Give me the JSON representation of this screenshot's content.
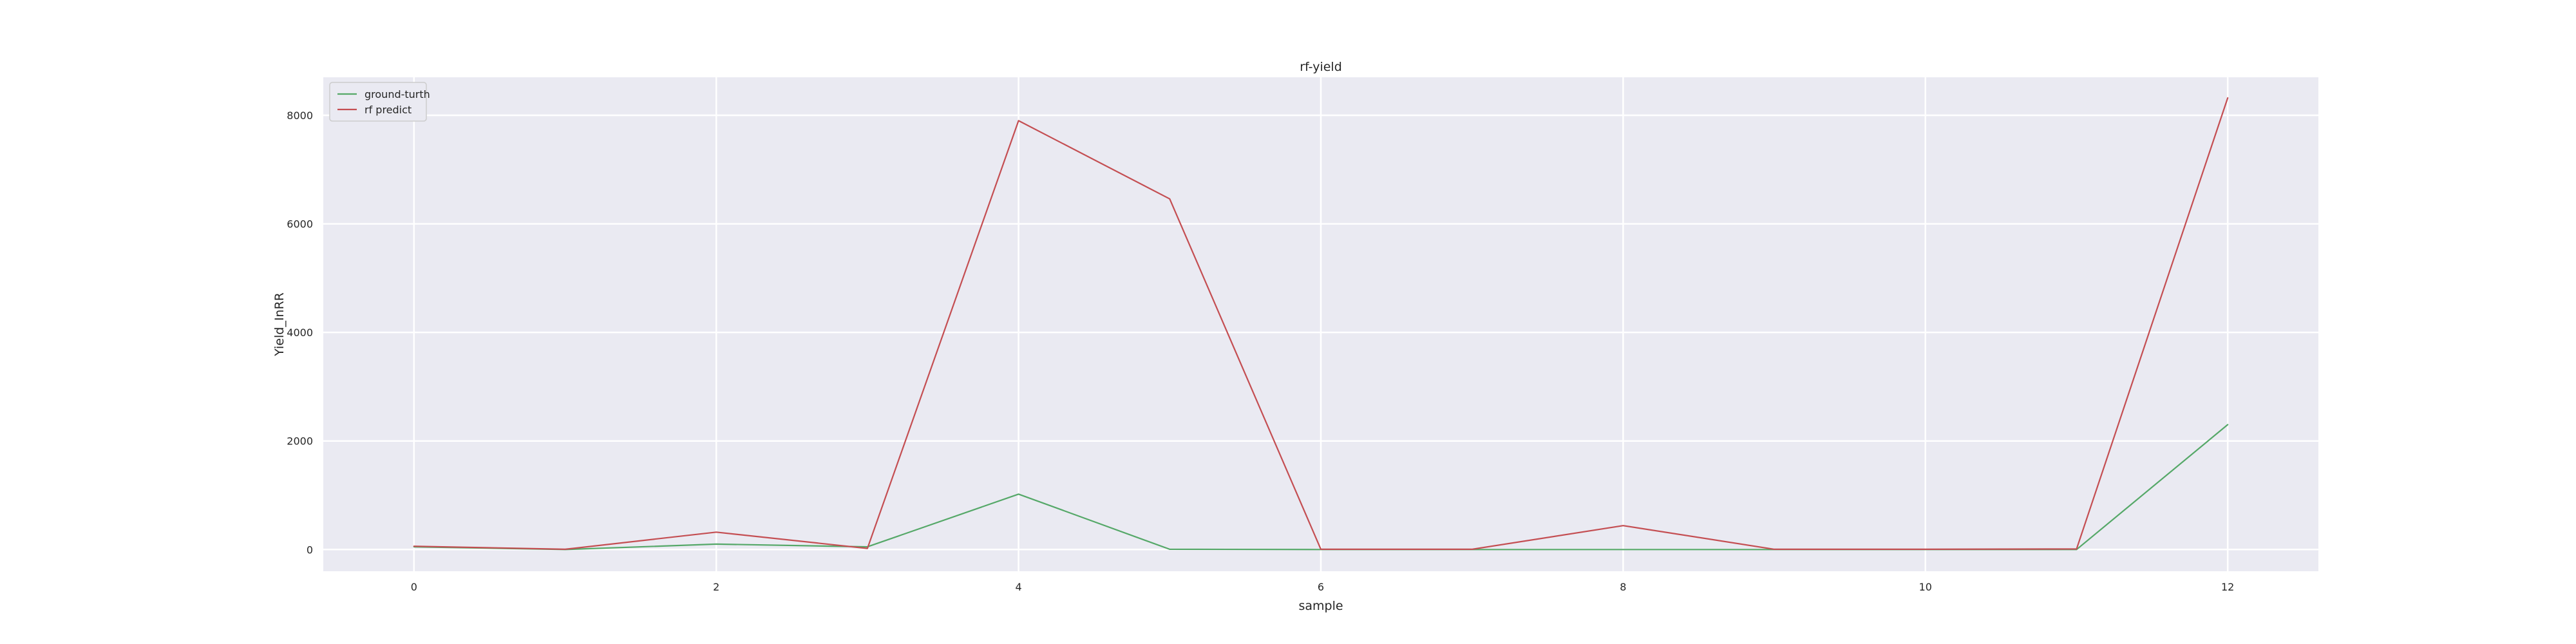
{
  "chart_data": {
    "type": "line",
    "title": "rf-yield",
    "xlabel": "sample",
    "ylabel": "Yield_InRR",
    "x": [
      0,
      1,
      2,
      3,
      4,
      5,
      6,
      7,
      8,
      9,
      10,
      11,
      12
    ],
    "series": [
      {
        "name": "ground-turth",
        "color": "#55a868",
        "values": [
          50,
          0,
          100,
          50,
          1020,
          5,
          0,
          0,
          0,
          0,
          0,
          0,
          2300
        ]
      },
      {
        "name": "rf predict",
        "color": "#c44e52",
        "values": [
          60,
          5,
          320,
          20,
          7900,
          6460,
          5,
          5,
          440,
          5,
          5,
          10,
          8320
        ]
      }
    ],
    "xlim": [
      -0.6,
      12.6
    ],
    "ylim": [
      -400,
      8700
    ],
    "xticks": [
      0,
      2,
      4,
      6,
      8,
      10,
      12
    ],
    "yticks": [
      0,
      2000,
      4000,
      6000,
      8000
    ],
    "grid": true,
    "legend_position": "top-left",
    "background_color": "#eaeaf2",
    "grid_color": "#ffffff"
  }
}
